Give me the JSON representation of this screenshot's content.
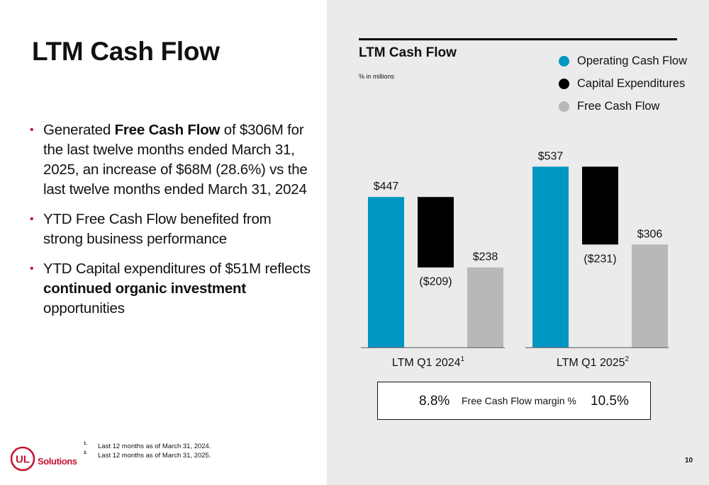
{
  "page": {
    "title": "LTM Cash Flow",
    "page_number": "10",
    "logo_text": "Solutions",
    "logo_mark": "UL"
  },
  "bullets": [
    {
      "segments": [
        {
          "text": "Generated ",
          "bold": false
        },
        {
          "text": "Free Cash Flow",
          "bold": true
        },
        {
          "text": " of $306M for the last twelve months ended March 31, 2025, an increase of $68M (28.6%) vs the last twelve months ended March 31, 2024",
          "bold": false
        }
      ]
    },
    {
      "segments": [
        {
          "text": "YTD Free Cash Flow benefited from strong business performance",
          "bold": false
        }
      ]
    },
    {
      "segments": [
        {
          "text": "YTD Capital expenditures of $51M reflects ",
          "bold": false
        },
        {
          "text": "continued organic investment",
          "bold": true
        },
        {
          "text": " opportunities",
          "bold": false
        }
      ]
    }
  ],
  "footnotes": [
    {
      "mark": "1.",
      "text": "Last 12 months as of March 31, 2024."
    },
    {
      "mark": "2.",
      "text": "Last 12 months as of March 31, 2025."
    }
  ],
  "margin_box": {
    "label": "Free Cash Flow margin %",
    "values": [
      "8.8%",
      "10.5%"
    ]
  },
  "colors": {
    "operating": "#0096c3",
    "capex": "#000000",
    "fcf": "#b8b8b8",
    "brand_red": "#c4122f"
  },
  "chart_data": {
    "type": "bar",
    "title": "LTM Cash Flow",
    "subtitle": "% in millions",
    "legend_position": "top-right",
    "categories": [
      "LTM Q1 2024",
      "LTM Q1 2025"
    ],
    "category_footnotes": [
      "1",
      "2"
    ],
    "series": [
      {
        "name": "Operating Cash Flow",
        "values": [
          447,
          537
        ],
        "labels": [
          "$447",
          "$537"
        ],
        "color": "#0096c3"
      },
      {
        "name": "Capital Expenditures",
        "values": [
          -209,
          -231
        ],
        "labels": [
          "($209)",
          "($231)"
        ],
        "color": "#000000"
      },
      {
        "name": "Free Cash Flow",
        "values": [
          238,
          306
        ],
        "labels": [
          "$238",
          "$306"
        ],
        "color": "#b8b8b8"
      }
    ],
    "waterfall": true,
    "ylim": [
      0,
      560
    ],
    "grid": false
  }
}
